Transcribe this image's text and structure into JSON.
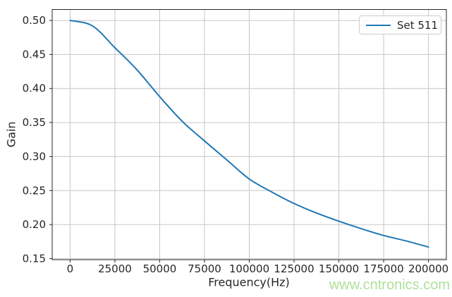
{
  "watermark": {
    "text": "www.cntronics.com",
    "color": "#b0e09c"
  },
  "chart_data": {
    "type": "line",
    "xlabel": "Frequency(Hz)",
    "ylabel": "Gain",
    "grid": true,
    "legend_position": "upper right",
    "xlim": [
      -10000,
      210000
    ],
    "ylim": [
      0.1484,
      0.5161
    ],
    "x_ticks": {
      "values": [
        0,
        25000,
        50000,
        75000,
        100000,
        125000,
        150000,
        175000,
        200000
      ],
      "labels": [
        "0",
        "25000",
        "50000",
        "75000",
        "100000",
        "125000",
        "150000",
        "175000",
        "200000"
      ]
    },
    "y_ticks": {
      "values": [
        0.15,
        0.2,
        0.25,
        0.3,
        0.35,
        0.4,
        0.45,
        0.5
      ],
      "labels": [
        "0.15",
        "0.20",
        "0.25",
        "0.30",
        "0.35",
        "0.40",
        "0.45",
        "0.50"
      ]
    },
    "series": [
      {
        "name": "Set 511",
        "color": "#1f77b4",
        "line_width": 2,
        "x": [
          0,
          12500,
          25000,
          37500,
          50000,
          62500,
          75000,
          87500,
          100000,
          112500,
          125000,
          137500,
          150000,
          162500,
          175000,
          187500,
          200000
        ],
        "y": [
          0.5,
          0.492,
          0.46,
          0.427,
          0.388,
          0.352,
          0.323,
          0.295,
          0.267,
          0.248,
          0.231,
          0.217,
          0.205,
          0.194,
          0.184,
          0.176,
          0.167
        ]
      }
    ],
    "colors": {
      "grid": "#c6c6c6",
      "spine": "#262626",
      "tick_label": "#262626",
      "legend_border": "#cccccc"
    }
  }
}
